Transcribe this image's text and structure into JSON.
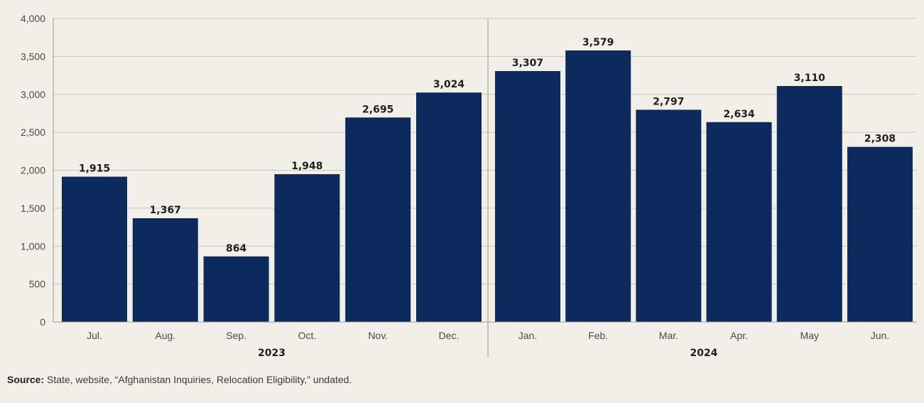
{
  "chart_data": {
    "type": "bar",
    "categories": [
      "Jul.",
      "Aug.",
      "Sep.",
      "Oct.",
      "Nov.",
      "Dec.",
      "Jan.",
      "Feb.",
      "Mar.",
      "Apr.",
      "May",
      "Jun."
    ],
    "values": [
      1915,
      1367,
      864,
      1948,
      2695,
      3024,
      3307,
      3579,
      2797,
      2634,
      3110,
      2308
    ],
    "data_labels": [
      "1,915",
      "1,367",
      "864",
      "1,948",
      "2,695",
      "3,024",
      "3,307",
      "3,579",
      "2,797",
      "2,634",
      "3,110",
      "2,308"
    ],
    "year_groups": [
      {
        "label": "2023",
        "start_index": 0,
        "end_index": 5
      },
      {
        "label": "2024",
        "start_index": 6,
        "end_index": 11
      }
    ],
    "ylim": [
      0,
      4000
    ],
    "yticks": [
      0,
      500,
      1000,
      1500,
      2000,
      2500,
      3000,
      3500,
      4000
    ],
    "ytick_labels": [
      "0",
      "500",
      "1,000",
      "1,500",
      "2,000",
      "2,500",
      "3,000",
      "3,500",
      "4,000"
    ],
    "grid": true,
    "bar_color": "#0d2a5e",
    "gridline_color": "#c9c6bb"
  },
  "source": {
    "label": "Source:",
    "text": " State, website, “Afghanistan Inquiries, Relocation Eligibility,” undated."
  }
}
